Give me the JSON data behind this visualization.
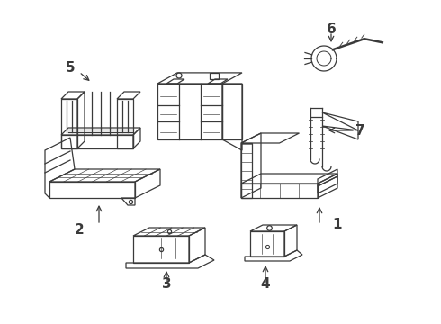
{
  "bg_color": "#ffffff",
  "line_color": "#3a3a3a",
  "label_color": "#000000",
  "label_fontsize": 11,
  "figsize": [
    4.9,
    3.6
  ],
  "dpi": 100
}
